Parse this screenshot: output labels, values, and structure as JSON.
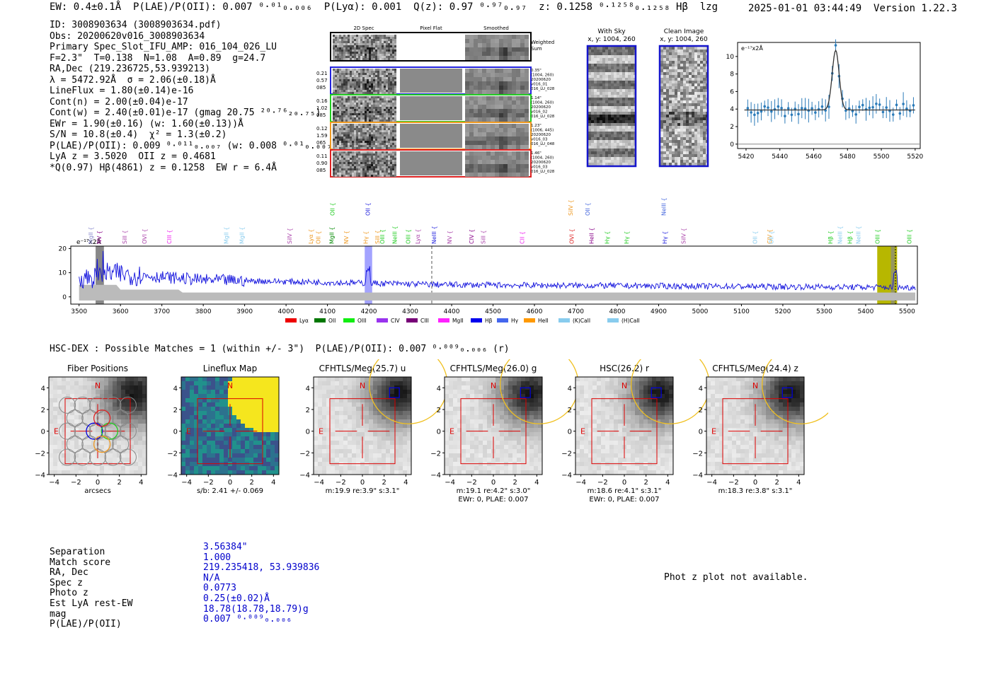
{
  "header": {
    "summary": "EW: 0.4±0.1Å  P(LAE)/P(OII): 0.007 ⁰·⁰¹₀.₀₀₆  P(Lyα): 0.001  Q(z): 0.97 ⁰·⁹⁷₀.₉₇  z: 0.1258 ⁰·¹²⁵⁸₀.₁₂₅₈ Hβ  lzg",
    "timestamp": "2025-01-01 03:44:49",
    "version": "Version 1.22.3"
  },
  "info_lines": [
    "ID: 3008903634 (3008903634.pdf)",
    "Obs: 20200620v016_3008903634",
    "Primary Spec_Slot_IFU_AMP: 016_104_026_LU",
    "F=2.3\"  T=0.138  N=1.08  A=0.89  g=24.7",
    "RA,Dec (219.236725,53.939213)",
    "λ = 5472.92Å  σ = 2.06(±0.18)Å",
    "LineFlux = 1.80(±0.14)e-16",
    "Cont(n) = 2.00(±0.04)e-17",
    "Cont(w) = 2.40(±0.01)e-17 (gmag 20.75 ²⁰·⁷⁶₂₀.₇₅)",
    "EWr = 1.90(±0.16) (w: 1.60(±0.13))Å",
    "S/N = 10.8(±0.4)  χ² = 1.3(±0.2)",
    "P(LAE)/P(OII): 0.009 ⁰·⁰¹¹₀.₀₀₇ (w: 0.008 ⁰·⁰¹₀.₀₀₇)",
    "LyA z = 3.5020  OII z = 0.4681",
    "*Q(0.97) Hβ(4861) z = 0.1258  EW r = 6.4Å"
  ],
  "cutouts": {
    "col_titles": [
      "2D Spec",
      "Pixel Flat",
      "Smoothed"
    ],
    "weighted_label": "Weighted Sum",
    "rows": [
      {
        "left": [
          "0.21",
          "0.57",
          "085"
        ],
        "right": [
          "0.35\"",
          "(1004, 260)",
          "20200620",
          "v016_01",
          "016_LU_028"
        ],
        "color": "#2222dd"
      },
      {
        "left": [
          "0.16",
          "1.02",
          "085"
        ],
        "right": [
          "1.14\"",
          "(1004, 260)",
          "20200620",
          "v016_02",
          "016_LU_028"
        ],
        "color": "#22cc22"
      },
      {
        "left": [
          "0.12",
          "1.59",
          "065"
        ],
        "right": [
          "1.23\"",
          "(1006, 445)",
          "20200620",
          "v016_03",
          "016_LU_048"
        ],
        "color": "#ee9922"
      },
      {
        "left": [
          "0.11",
          "0.90",
          "085"
        ],
        "right": [
          "1.46\"",
          "(1004, 260)",
          "20200620",
          "v016_03",
          "016_LU_028"
        ],
        "color": "#dd2222"
      }
    ]
  },
  "sky_panels": [
    {
      "title": "With Sky",
      "subtitle": "x, y: 1004, 260"
    },
    {
      "title": "Clean Image",
      "subtitle": "x, y: 1004, 260"
    }
  ],
  "zoom_chart": {
    "ylabel": "e⁻¹⁷x2Å",
    "xlim": [
      5415,
      5523
    ],
    "ylim": [
      -0.5,
      11.6
    ],
    "xticks": [
      5420,
      5440,
      5460,
      5480,
      5500,
      5520
    ],
    "yticks": [
      0,
      2,
      4,
      6,
      8,
      10
    ],
    "continuum": 3.9,
    "peak_center": 5473,
    "peak_amp": 6.8,
    "peak_sigma": 2.06
  },
  "full_chart": {
    "ylabel": "e⁻¹⁷x2Å",
    "xlim": [
      3480,
      5525
    ],
    "ylim": [
      -3,
      21
    ],
    "xticks": [
      3500,
      3600,
      3700,
      3800,
      3900,
      4000,
      4100,
      4200,
      4300,
      4400,
      4500,
      4600,
      4700,
      4800,
      4900,
      5000,
      5100,
      5200,
      5300,
      5400,
      5500
    ],
    "yticks": [
      0,
      10,
      20
    ],
    "lines": [
      {
        "name": "MgII",
        "x": 3528,
        "row": 1,
        "color": "#8888cc"
      },
      {
        "name": "NV",
        "x": 3548,
        "row": 1,
        "color": "#880088"
      },
      {
        "name": "SiII",
        "x": 3610,
        "row": 1,
        "color": "#aa44aa"
      },
      {
        "name": "OVI",
        "x": 3658,
        "row": 1,
        "color": "#aa44aa"
      },
      {
        "name": "CIII",
        "x": 3718,
        "row": 1,
        "color": "#ee22ee"
      },
      {
        "name": "MgII",
        "x": 3855,
        "row": 1,
        "color": "#88ccee"
      },
      {
        "name": "MgII",
        "x": 3893,
        "row": 1,
        "color": "#88ccee"
      },
      {
        "name": "SiIV",
        "x": 4008,
        "row": 1,
        "color": "#aa44aa"
      },
      {
        "name": "Lyα",
        "x": 4060,
        "row": 1,
        "color": "#ee9922"
      },
      {
        "name": "OII",
        "x": 4078,
        "row": 1,
        "color": "#ee9922"
      },
      {
        "name": "MgII",
        "x": 4110,
        "row": 1,
        "color": "#008800"
      },
      {
        "name": "OII",
        "x": 4112,
        "row": 0,
        "color": "#22cc22"
      },
      {
        "name": "NV",
        "x": 4145,
        "row": 1,
        "color": "#ee9922"
      },
      {
        "name": "Hγ",
        "x": 4192,
        "row": 1,
        "color": "#ee9922"
      },
      {
        "name": "OII",
        "x": 4197,
        "row": 0,
        "color": "#2222dd"
      },
      {
        "name": "SiII",
        "x": 4220,
        "row": 1,
        "color": "#ee9922"
      },
      {
        "name": "OIII",
        "x": 4232,
        "row": 1,
        "color": "#22cc22"
      },
      {
        "name": "NeIII",
        "x": 4262,
        "row": 1,
        "color": "#22cc22"
      },
      {
        "name": "OIII",
        "x": 4295,
        "row": 1,
        "color": "#22cc22"
      },
      {
        "name": "Lyα",
        "x": 4318,
        "row": 1,
        "color": "#aa44aa"
      },
      {
        "name": "NeIII",
        "x": 4357,
        "row": 1,
        "color": "#2222dd"
      },
      {
        "name": "NV",
        "x": 4395,
        "row": 1,
        "color": "#aa44aa"
      },
      {
        "name": "CIV",
        "x": 4448,
        "row": 1,
        "color": "#880088"
      },
      {
        "name": "SiII",
        "x": 4476,
        "row": 1,
        "color": "#aa44aa"
      },
      {
        "name": "CII",
        "x": 4570,
        "row": 1,
        "color": "#ee22ee"
      },
      {
        "name": "OVI",
        "x": 4690,
        "row": 1,
        "color": "#dd2222"
      },
      {
        "name": "SiIV",
        "x": 4687,
        "row": 0,
        "color": "#ee9922"
      },
      {
        "name": "HeII",
        "x": 4738,
        "row": 1,
        "color": "#880088"
      },
      {
        "name": "OII",
        "x": 4728,
        "row": 0,
        "color": "#4466dd"
      },
      {
        "name": "Hγ",
        "x": 4775,
        "row": 1,
        "color": "#22cc22"
      },
      {
        "name": "Hγ",
        "x": 4822,
        "row": 1,
        "color": "#22cc22"
      },
      {
        "name": "Hγ",
        "x": 4915,
        "row": 1,
        "color": "#2222dd"
      },
      {
        "name": "NeIII",
        "x": 4912,
        "row": 0,
        "color": "#4466dd"
      },
      {
        "name": "SiIV",
        "x": 4960,
        "row": 1,
        "color": "#aa44aa"
      },
      {
        "name": "OII",
        "x": 5133,
        "row": 1,
        "color": "#88ccee"
      },
      {
        "name": "CIV",
        "x": 5168,
        "row": 1,
        "color": "#ee9922"
      },
      {
        "name": "OII",
        "x": 5172,
        "row": 1,
        "color": "#88ccee"
      },
      {
        "name": "Hβ",
        "x": 5315,
        "row": 1,
        "color": "#22cc22"
      },
      {
        "name": "NeIII",
        "x": 5338,
        "row": 1,
        "color": "#88ccee"
      },
      {
        "name": "Hβ",
        "x": 5362,
        "row": 1,
        "color": "#22cc22"
      },
      {
        "name": "NeIII",
        "x": 5382,
        "row": 1,
        "color": "#88ccee"
      },
      {
        "name": "OIII",
        "x": 5428,
        "row": 1,
        "color": "#22cc22"
      },
      {
        "name": "OIII",
        "x": 5505,
        "row": 1,
        "color": "#22cc22"
      }
    ],
    "legend": [
      {
        "name": "Lyα",
        "color": "#ee0000"
      },
      {
        "name": "OII",
        "color": "#007700"
      },
      {
        "name": "OIII",
        "color": "#11ee11"
      },
      {
        "name": "CIV",
        "color": "#9933ee"
      },
      {
        "name": "CIII",
        "color": "#770077"
      },
      {
        "name": "MgII",
        "color": "#ff22ff"
      },
      {
        "name": "Hβ",
        "color": "#0000ee"
      },
      {
        "name": "Hγ",
        "color": "#4466ee"
      },
      {
        "name": "HeII",
        "color": "#ff9900"
      },
      {
        "name": "(K)CaII",
        "color": "#88ccee"
      },
      {
        "name": "(H)CaII",
        "color": "#88ccee"
      }
    ]
  },
  "hsc_title": "HSC-DEX : Possible Matches = 1 (within +/- 3\")  P(LAE)/P(OII): 0.007 ⁰·⁰⁰⁹₀.₀₀₆ (r)",
  "stamps": [
    {
      "title": "Fiber Positions",
      "caption1": "arcsecs",
      "caption2": ""
    },
    {
      "title": "Lineflux Map",
      "caption1": "s/b: 2.41 +/- 0.069",
      "caption2": ""
    },
    {
      "title": "CFHTLS/Meg(25.7) u",
      "caption1": "m:19.9  re:3.9\"  s:3.1\"",
      "caption2": ""
    },
    {
      "title": "CFHTLS/Meg(26.0) g",
      "caption1": "m:19.1  re:4.2\"  s:3.0\"",
      "caption2": "EWr: 0, PLAE: 0.007"
    },
    {
      "title": "HSC(26.2) r",
      "caption1": "m:18.6  re:4.1\"  s:3.1\"",
      "caption2": "EWr: 0, PLAE: 0.007"
    },
    {
      "title": "CFHTLS/Meg(24.4) z",
      "caption1": "m:18.3  re:3.8\"  s:3.1\"",
      "caption2": ""
    }
  ],
  "stamp_axis": {
    "ticks": [
      "−4",
      "−2",
      "0",
      "2",
      "4"
    ],
    "north": "N",
    "east": "E"
  },
  "match_table": {
    "labels": [
      "Separation",
      "Match score",
      "RA, Dec",
      "Spec z",
      "Photo z",
      "Est LyA rest-EW",
      "mag",
      "P(LAE)/P(OII)"
    ],
    "values": [
      "3.56384\"",
      "1.000",
      "219.235418, 53.939836",
      "N/A",
      "0.0773",
      "0.25(±0.02)Å",
      "18.78(18.78,18.79)g",
      "0.007 ⁰·⁰⁰⁹₀.₀₀₆"
    ]
  },
  "photz_note": "Phot z plot not available."
}
